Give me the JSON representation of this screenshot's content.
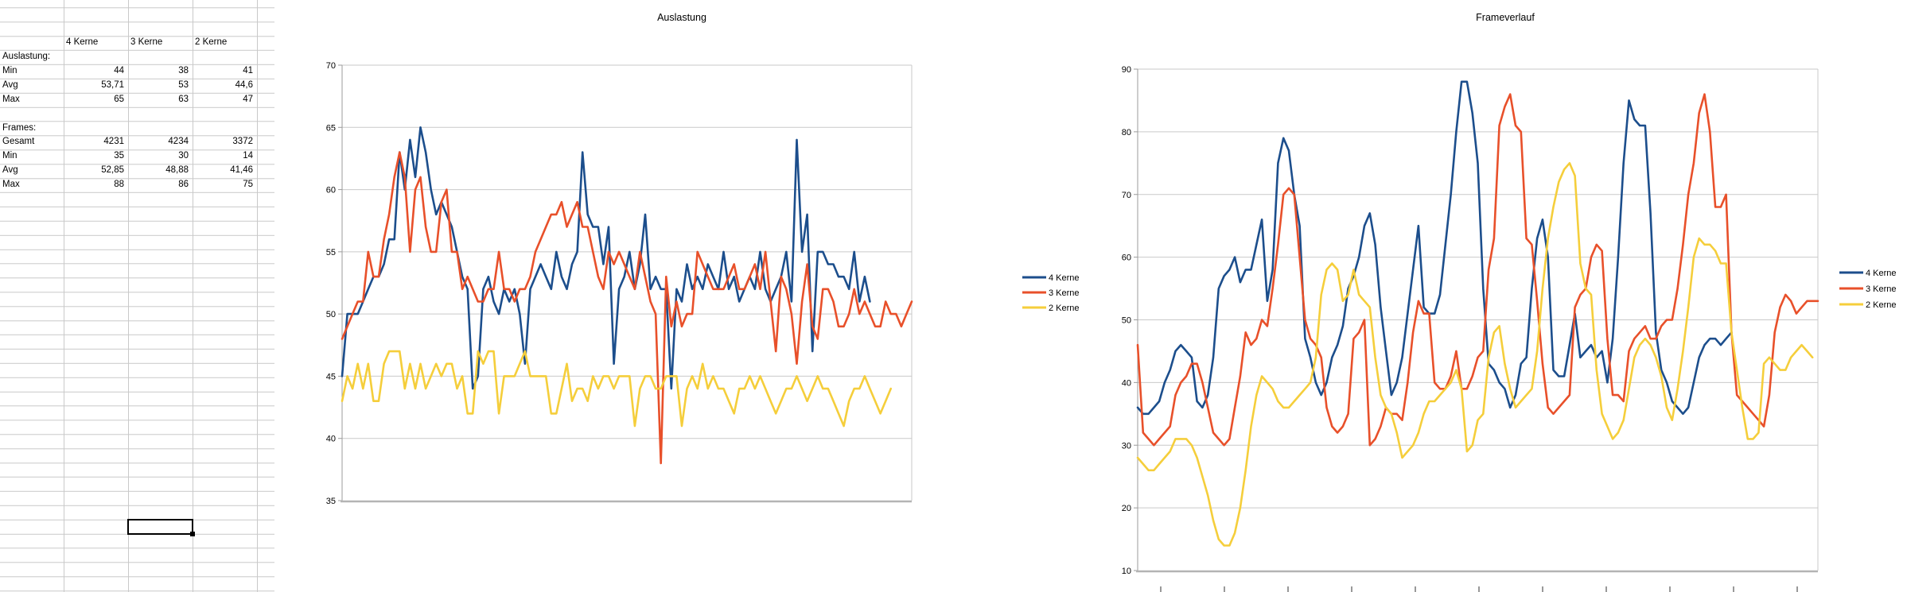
{
  "sheet": {
    "columns": [
      "A",
      "B",
      "C",
      "D"
    ],
    "rows": [
      {
        "r": 3,
        "cells": [
          {
            "c": 1,
            "t": "4 Kerne",
            "a": "lab"
          },
          {
            "c": 2,
            "t": "3 Kerne",
            "a": "lab"
          },
          {
            "c": 3,
            "t": "2 Kerne",
            "a": "lab"
          }
        ]
      },
      {
        "r": 4,
        "cells": [
          {
            "c": 0,
            "t": "Auslastung:",
            "a": "lab"
          }
        ]
      },
      {
        "r": 5,
        "cells": [
          {
            "c": 0,
            "t": "Min",
            "a": "lab"
          },
          {
            "c": 1,
            "t": "44",
            "a": "num"
          },
          {
            "c": 2,
            "t": "38",
            "a": "num"
          },
          {
            "c": 3,
            "t": "41",
            "a": "num"
          }
        ]
      },
      {
        "r": 6,
        "cells": [
          {
            "c": 0,
            "t": "Avg",
            "a": "lab"
          },
          {
            "c": 1,
            "t": "53,71",
            "a": "num"
          },
          {
            "c": 2,
            "t": "53",
            "a": "num"
          },
          {
            "c": 3,
            "t": "44,6",
            "a": "num"
          }
        ]
      },
      {
        "r": 7,
        "cells": [
          {
            "c": 0,
            "t": "Max",
            "a": "lab"
          },
          {
            "c": 1,
            "t": "65",
            "a": "num"
          },
          {
            "c": 2,
            "t": "63",
            "a": "num"
          },
          {
            "c": 3,
            "t": "47",
            "a": "num"
          }
        ]
      },
      {
        "r": 9,
        "cells": [
          {
            "c": 0,
            "t": "Frames:",
            "a": "lab"
          }
        ]
      },
      {
        "r": 10,
        "cells": [
          {
            "c": 0,
            "t": "Gesamt",
            "a": "lab"
          },
          {
            "c": 1,
            "t": "4231",
            "a": "num"
          },
          {
            "c": 2,
            "t": "4234",
            "a": "num"
          },
          {
            "c": 3,
            "t": "3372",
            "a": "num"
          }
        ]
      },
      {
        "r": 11,
        "cells": [
          {
            "c": 0,
            "t": "Min",
            "a": "lab"
          },
          {
            "c": 1,
            "t": "35",
            "a": "num"
          },
          {
            "c": 2,
            "t": "30",
            "a": "num"
          },
          {
            "c": 3,
            "t": "14",
            "a": "num"
          }
        ]
      },
      {
        "r": 12,
        "cells": [
          {
            "c": 0,
            "t": "Avg",
            "a": "lab"
          },
          {
            "c": 1,
            "t": "52,85",
            "a": "num"
          },
          {
            "c": 2,
            "t": "48,88",
            "a": "num"
          },
          {
            "c": 3,
            "t": "41,46",
            "a": "num"
          }
        ]
      },
      {
        "r": 13,
        "cells": [
          {
            "c": 0,
            "t": "Max",
            "a": "lab"
          },
          {
            "c": 1,
            "t": "88",
            "a": "num"
          },
          {
            "c": 2,
            "t": "86",
            "a": "num"
          },
          {
            "c": 3,
            "t": "75",
            "a": "num"
          }
        ]
      }
    ],
    "selection": {
      "row": 37,
      "col": 2
    }
  },
  "colors": {
    "series_blue": "#1C4E8C",
    "series_red": "#E8502A",
    "series_yellow": "#F5CE3B",
    "gridline": "#c9c9c9",
    "axis": "#9b9b9b",
    "axis_base": "#b4b4b4"
  },
  "chart_data": [
    {
      "type": "line",
      "title": "Auslastung",
      "xlabel": "",
      "ylabel": "",
      "ylim": [
        35,
        70
      ],
      "ytick": 5,
      "grid": true,
      "legend_position": "right",
      "x_axis_labels_visible": false,
      "series": [
        {
          "name": "4 Kerne",
          "color": "#1C4E8C",
          "values": [
            45,
            50,
            50,
            50,
            51,
            52,
            53,
            53,
            54,
            56,
            56,
            63,
            60,
            64,
            61,
            65,
            63,
            60,
            58,
            59,
            58,
            57,
            55,
            53,
            52,
            44,
            45,
            52,
            53,
            51,
            50,
            52,
            51,
            52,
            50,
            46,
            52,
            53,
            54,
            53,
            52,
            55,
            53,
            52,
            54,
            55,
            63,
            58,
            57,
            57,
            54,
            57,
            46,
            52,
            53,
            55,
            52,
            54,
            58,
            52,
            53,
            52,
            52,
            44,
            52,
            51,
            54,
            52,
            53,
            52,
            54,
            53,
            52,
            55,
            52,
            53,
            51,
            52,
            53,
            52,
            55,
            52,
            51,
            52,
            53,
            55,
            51,
            64,
            55,
            58,
            47,
            55,
            55,
            54,
            54,
            53,
            53,
            52,
            55,
            51,
            53,
            51
          ]
        },
        {
          "name": "3 Kerne",
          "color": "#E8502A",
          "values": [
            48,
            49,
            50,
            51,
            51,
            55,
            53,
            53,
            56,
            58,
            61,
            63,
            61,
            55,
            60,
            61,
            57,
            55,
            55,
            59,
            60,
            55,
            55,
            52,
            53,
            52,
            51,
            51,
            52,
            52,
            55,
            52,
            52,
            51,
            52,
            52,
            53,
            55,
            56,
            57,
            58,
            58,
            59,
            57,
            58,
            59,
            57,
            57,
            55,
            53,
            52,
            55,
            54,
            55,
            54,
            53,
            52,
            55,
            53,
            51,
            50,
            38,
            53,
            49,
            51,
            49,
            50,
            50,
            55,
            54,
            53,
            52,
            52,
            52,
            53,
            54,
            52,
            52,
            53,
            54,
            52,
            55,
            51,
            47,
            53,
            52,
            50,
            46,
            51,
            54,
            49,
            48,
            52,
            52,
            51,
            49,
            49,
            50,
            52,
            50,
            51,
            50,
            49,
            49,
            51,
            50,
            50,
            49,
            50,
            51
          ]
        },
        {
          "name": "2 Kerne",
          "color": "#F5CE3B",
          "values": [
            43,
            45,
            44,
            46,
            44,
            46,
            43,
            43,
            46,
            47,
            47,
            47,
            44,
            46,
            44,
            46,
            44,
            45,
            46,
            45,
            46,
            46,
            44,
            45,
            42,
            42,
            47,
            46,
            47,
            47,
            42,
            45,
            45,
            45,
            46,
            47,
            45,
            45,
            45,
            45,
            42,
            42,
            44,
            46,
            43,
            44,
            44,
            43,
            45,
            44,
            45,
            45,
            44,
            45,
            45,
            45,
            41,
            44,
            45,
            45,
            44,
            44,
            45,
            45,
            45,
            41,
            44,
            45,
            44,
            46,
            44,
            45,
            44,
            44,
            43,
            42,
            44,
            44,
            45,
            44,
            45,
            44,
            43,
            42,
            43,
            44,
            44,
            45,
            44,
            43,
            44,
            45,
            44,
            44,
            43,
            42,
            41,
            43,
            44,
            44,
            45,
            44,
            43,
            42,
            43,
            44
          ]
        }
      ]
    },
    {
      "type": "line",
      "title": "Frameverlauf",
      "xlabel": "",
      "ylabel": "",
      "ylim": [
        10,
        90
      ],
      "ytick": 10,
      "grid": true,
      "legend_position": "right",
      "x_axis_labels_visible": false,
      "series": [
        {
          "name": "4 Kerne",
          "color": "#1C4E8C",
          "values": [
            36,
            35,
            35,
            36,
            37,
            40,
            42,
            45,
            46,
            45,
            44,
            37,
            36,
            38,
            44,
            55,
            57,
            58,
            60,
            56,
            58,
            58,
            62,
            66,
            53,
            58,
            75,
            79,
            77,
            70,
            65,
            47,
            44,
            40,
            38,
            40,
            44,
            46,
            49,
            55,
            57,
            60,
            65,
            67,
            62,
            52,
            45,
            38,
            40,
            44,
            51,
            58,
            65,
            52,
            51,
            51,
            54,
            62,
            70,
            80,
            88,
            88,
            83,
            75,
            55,
            43,
            42,
            40,
            39,
            36,
            38,
            43,
            44,
            55,
            63,
            66,
            60,
            42,
            41,
            41,
            46,
            51,
            44,
            45,
            46,
            44,
            45,
            40,
            47,
            60,
            75,
            85,
            82,
            81,
            81,
            67,
            48,
            42,
            40,
            37,
            36,
            35,
            36,
            40,
            44,
            46,
            47,
            47,
            46,
            47,
            48
          ]
        },
        {
          "name": "3 Kerne",
          "color": "#E8502A",
          "values": [
            46,
            32,
            31,
            30,
            31,
            32,
            33,
            38,
            40,
            41,
            43,
            43,
            40,
            36,
            32,
            31,
            30,
            31,
            36,
            41,
            48,
            46,
            47,
            50,
            49,
            55,
            62,
            70,
            71,
            70,
            60,
            50,
            47,
            46,
            44,
            36,
            33,
            32,
            33,
            35,
            47,
            48,
            50,
            30,
            31,
            33,
            36,
            35,
            35,
            34,
            40,
            48,
            53,
            51,
            51,
            40,
            39,
            39,
            41,
            45,
            39,
            39,
            41,
            44,
            45,
            58,
            63,
            81,
            84,
            86,
            81,
            80,
            63,
            62,
            53,
            43,
            36,
            35,
            36,
            37,
            38,
            52,
            54,
            55,
            60,
            62,
            61,
            47,
            38,
            38,
            37,
            45,
            47,
            48,
            49,
            47,
            47,
            49,
            50,
            50,
            55,
            62,
            70,
            75,
            83,
            86,
            80,
            68,
            68,
            70,
            48,
            38,
            37,
            36,
            35,
            34,
            33,
            38,
            48,
            52,
            54,
            53,
            51,
            52,
            53,
            53,
            53
          ]
        },
        {
          "name": "2 Kerne",
          "color": "#F5CE3B",
          "values": [
            28,
            27,
            26,
            26,
            27,
            28,
            29,
            31,
            31,
            31,
            30,
            28,
            25,
            22,
            18,
            15,
            14,
            14,
            16,
            20,
            26,
            33,
            38,
            41,
            40,
            39,
            37,
            36,
            36,
            37,
            38,
            39,
            40,
            44,
            54,
            58,
            59,
            58,
            53,
            54,
            58,
            54,
            53,
            52,
            44,
            38,
            36,
            35,
            32,
            28,
            29,
            30,
            32,
            35,
            37,
            37,
            38,
            39,
            40,
            42,
            39,
            29,
            30,
            34,
            35,
            44,
            48,
            49,
            43,
            39,
            36,
            37,
            38,
            39,
            45,
            55,
            63,
            68,
            72,
            74,
            75,
            73,
            59,
            55,
            54,
            42,
            35,
            33,
            31,
            32,
            34,
            39,
            44,
            46,
            47,
            46,
            44,
            41,
            36,
            34,
            39,
            45,
            52,
            60,
            63,
            62,
            62,
            61,
            59,
            59,
            48,
            42,
            36,
            31,
            31,
            32,
            43,
            44,
            43,
            42,
            42,
            44,
            45,
            46,
            45,
            44
          ]
        }
      ]
    }
  ]
}
